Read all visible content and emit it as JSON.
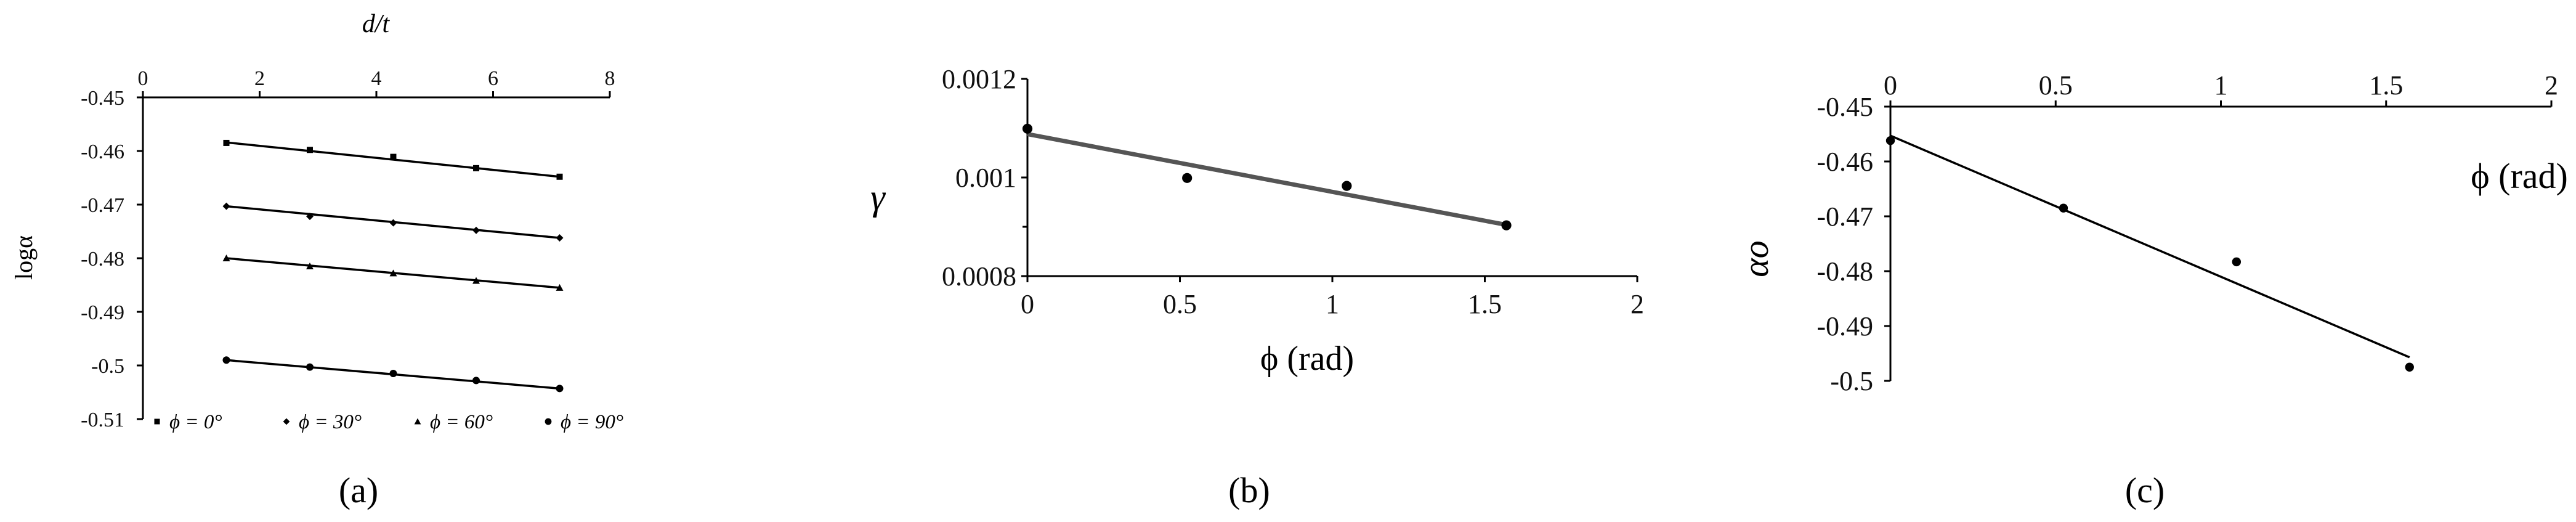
{
  "panels": {
    "a": "(a)",
    "b": "(b)",
    "c": "(c)"
  },
  "chart_data": [
    {
      "type": "line",
      "panel": "(a)",
      "xlabel": "d/t",
      "ylabel": "logα",
      "xlim": [
        0,
        8
      ],
      "ylim": [
        -0.51,
        -0.45
      ],
      "x_axis_position": "top",
      "x_ticks": [
        "0",
        "2",
        "4",
        "6",
        "8"
      ],
      "y_ticks": [
        "-0.45",
        "-0.46",
        "-0.47",
        "-0.48",
        "-0.49",
        "-0.5",
        "-0.51"
      ],
      "legend_position": "bottom",
      "grid": false,
      "x": [
        1.43,
        2.86,
        4.29,
        5.71,
        7.14
      ],
      "series": [
        {
          "name": "ϕ = 0°",
          "marker": "square",
          "values": [
            -0.4585,
            -0.4598,
            -0.4611,
            -0.4632,
            -0.4648
          ],
          "fit": [
            -0.4584,
            -0.4648
          ]
        },
        {
          "name": "ϕ = 30°",
          "marker": "diamond",
          "values": [
            -0.4703,
            -0.4722,
            -0.4734,
            -0.4748,
            -0.4762
          ],
          "fit": [
            -0.4703,
            -0.4762
          ]
        },
        {
          "name": "ϕ = 60°",
          "marker": "triangle",
          "values": [
            -0.48,
            -0.4815,
            -0.4828,
            -0.4842,
            -0.4855
          ],
          "fit": [
            -0.48,
            -0.4855
          ]
        },
        {
          "name": "ϕ = 90°",
          "marker": "circle",
          "values": [
            -0.499,
            -0.5003,
            -0.5015,
            -0.5028,
            -0.5043
          ],
          "fit": [
            -0.499,
            -0.5043
          ]
        }
      ]
    },
    {
      "type": "scatter",
      "panel": "(b)",
      "xlabel": "ϕ (rad)",
      "ylabel": "γ",
      "xlim": [
        0,
        2
      ],
      "ylim": [
        0.0008,
        0.0012
      ],
      "x_ticks": [
        "0",
        "0.5",
        "1",
        "1.5",
        "2"
      ],
      "y_ticks": [
        "0.0008",
        "0.001",
        "0.0012"
      ],
      "grid": false,
      "x": [
        0,
        0.5236,
        1.0472,
        1.5708
      ],
      "y": [
        0.001099,
        0.000999,
        0.000983,
        0.000903
      ],
      "fit_x": [
        0,
        1.5708
      ],
      "fit_y": [
        0.001088,
        0.000904
      ]
    },
    {
      "type": "scatter",
      "panel": "(c)",
      "xlabel": "ϕ (rad)",
      "ylabel": "αo",
      "xlim": [
        0,
        2
      ],
      "ylim": [
        -0.5,
        -0.45
      ],
      "x_axis_position": "top",
      "x_ticks": [
        "0",
        "0.5",
        "1",
        "1.5",
        "2"
      ],
      "y_ticks": [
        "-0.45",
        "-0.46",
        "-0.47",
        "-0.48",
        "-0.49",
        "-0.5"
      ],
      "grid": false,
      "x": [
        0,
        0.5236,
        1.0472,
        1.5708
      ],
      "y": [
        -0.4562,
        -0.4685,
        -0.4783,
        -0.4975
      ],
      "fit_x": [
        0,
        1.5708
      ],
      "fit_y": [
        -0.4553,
        -0.4957
      ]
    }
  ]
}
